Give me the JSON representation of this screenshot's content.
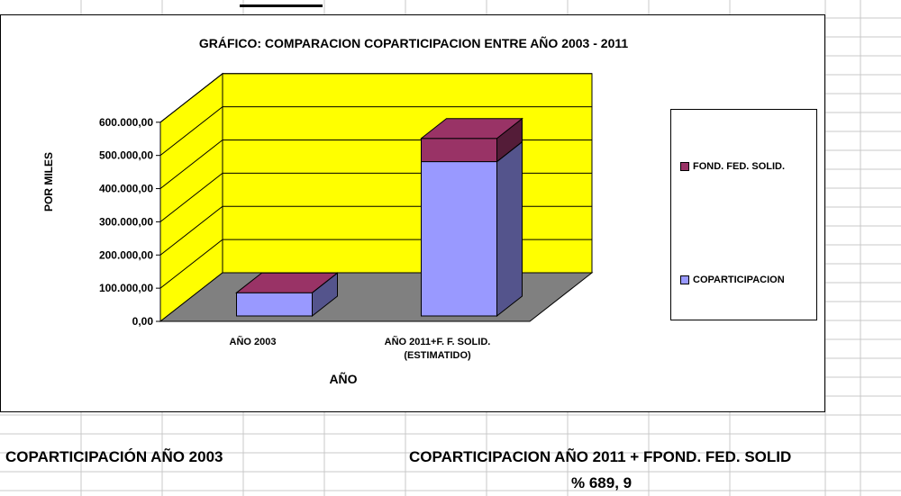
{
  "colors": {
    "wall": "#FFFF00",
    "floor": "#808080",
    "coparticipacion": "#9999FF",
    "fondo": "#993366",
    "grid": "#000000"
  },
  "chart_data": {
    "type": "bar",
    "stacked": true,
    "three_d": true,
    "title": "GRÁFICO: COMPARACION COPARTICIPACION ENTRE AÑO 2003 - 2011",
    "xlabel": "AÑO",
    "ylabel": "POR MILES",
    "categories": [
      "AÑO 2003",
      "AÑO 2011+F. F. SOLID. (ESTIMATIDO)"
    ],
    "category_lines": [
      [
        "AÑO 2003"
      ],
      [
        "AÑO 2011+F. F. SOLID.",
        "(ESTIMATIDO)"
      ]
    ],
    "series": [
      {
        "name": "COPARTICIPACION",
        "values": [
          70000,
          465000
        ]
      },
      {
        "name": "FOND. FED. SOLID.",
        "values": [
          0,
          70000
        ]
      }
    ],
    "ylim": [
      0,
      600000
    ],
    "yticks": [
      "0,00",
      "100.000,00",
      "200.000,00",
      "300.000,00",
      "400.000,00",
      "500.000,00",
      "600.000,00"
    ],
    "legend_position": "right",
    "grid": true
  },
  "footer": {
    "left": "COPARTICIPACIÓN AÑO 2003",
    "right": "COPARTICIPACION AÑO 2011 + FPOND. FED. SOLID",
    "percent": "% 689, 9"
  }
}
